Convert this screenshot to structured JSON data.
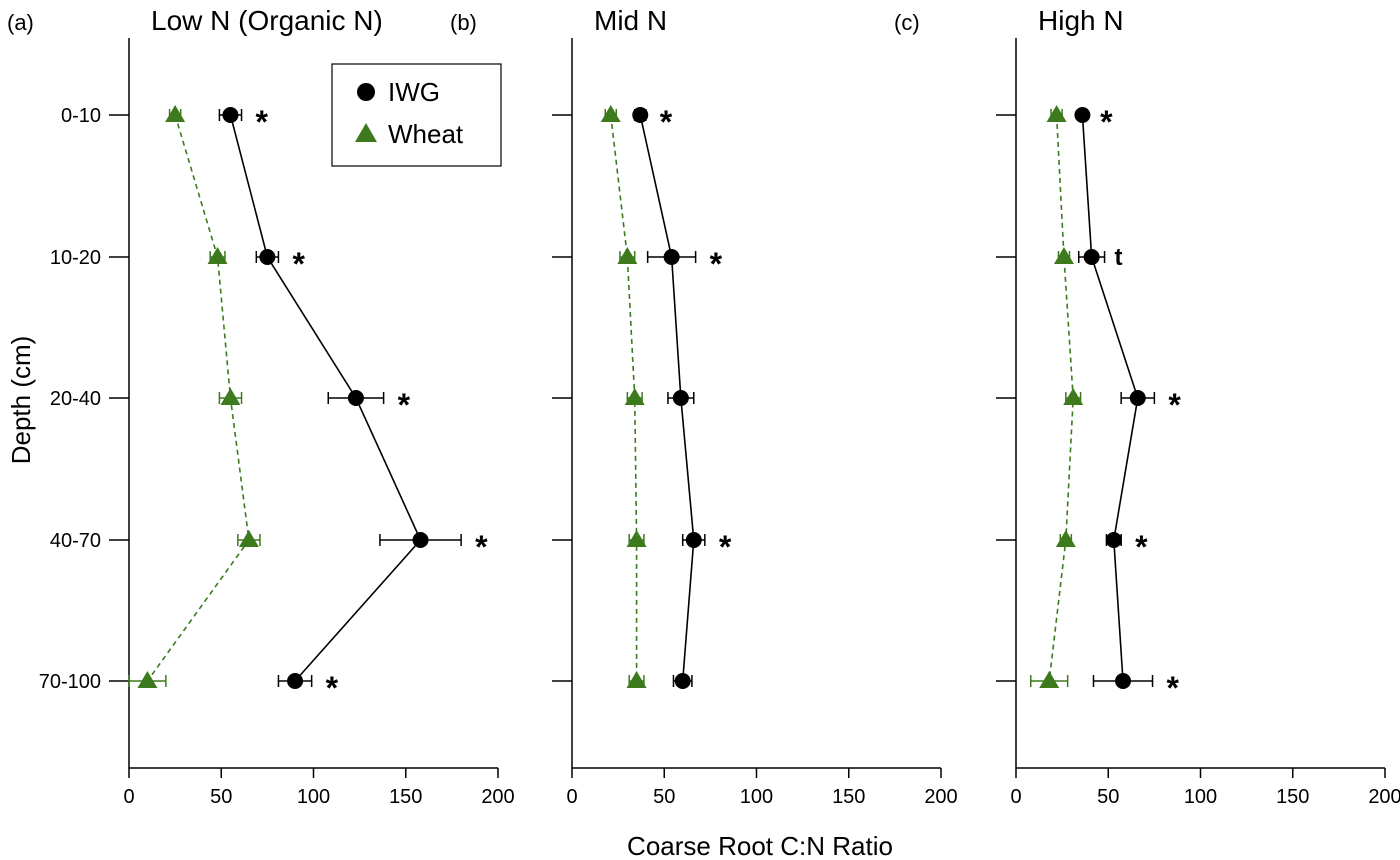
{
  "chart_data": {
    "type": "scatter",
    "ylabel": "Depth (cm)",
    "xlabel": "Coarse Root C:N Ratio",
    "depth_categories": [
      "0-10",
      "10-20",
      "20-40",
      "40-70",
      "70-100"
    ],
    "xlim": [
      0,
      200
    ],
    "xticks": [
      0,
      50,
      100,
      150,
      200
    ],
    "legend": {
      "placement": "top-right of panel (a)",
      "entries": [
        {
          "name": "IWG",
          "marker": "circle",
          "color": "#000000"
        },
        {
          "name": "Wheat",
          "marker": "triangle",
          "color": "#3d7a1e"
        }
      ]
    },
    "panels": [
      {
        "letter": "(a)",
        "title": "Low N (Organic N)",
        "series": [
          {
            "name": "IWG",
            "values": [
              55,
              75,
              123,
              158,
              90
            ],
            "errors": [
              6,
              6,
              15,
              22,
              9
            ],
            "line": "solid",
            "color": "#000000"
          },
          {
            "name": "Wheat",
            "values": [
              25,
              48,
              55,
              65,
              10
            ],
            "errors": [
              3,
              4,
              6,
              6,
              10
            ],
            "line": "dashed",
            "color": "#3d7a1e"
          }
        ],
        "significance": [
          "*",
          "*",
          "*",
          "*",
          "*"
        ]
      },
      {
        "letter": "(b)",
        "title": "Mid N",
        "series": [
          {
            "name": "IWG",
            "values": [
              37,
              54,
              59,
              66,
              60
            ],
            "errors": [
              3,
              13,
              7,
              6,
              5
            ],
            "line": "solid",
            "color": "#000000"
          },
          {
            "name": "Wheat",
            "values": [
              21,
              30,
              34,
              35,
              35
            ],
            "errors": [
              3,
              4,
              4,
              4,
              4
            ],
            "line": "dashed",
            "color": "#3d7a1e"
          }
        ],
        "significance": [
          "*",
          "*",
          "",
          "*",
          ""
        ]
      },
      {
        "letter": "(c)",
        "title": "High N",
        "series": [
          {
            "name": "IWG",
            "values": [
              36,
              41,
              66,
              53,
              58
            ],
            "errors": [
              2,
              7,
              9,
              4,
              16
            ],
            "line": "solid",
            "color": "#000000"
          },
          {
            "name": "Wheat",
            "values": [
              22,
              26,
              31,
              27,
              18
            ],
            "errors": [
              3,
              3,
              4,
              3,
              10
            ],
            "line": "dashed",
            "color": "#3d7a1e"
          }
        ],
        "significance": [
          "*",
          "t",
          "*",
          "*",
          "*"
        ]
      }
    ]
  }
}
